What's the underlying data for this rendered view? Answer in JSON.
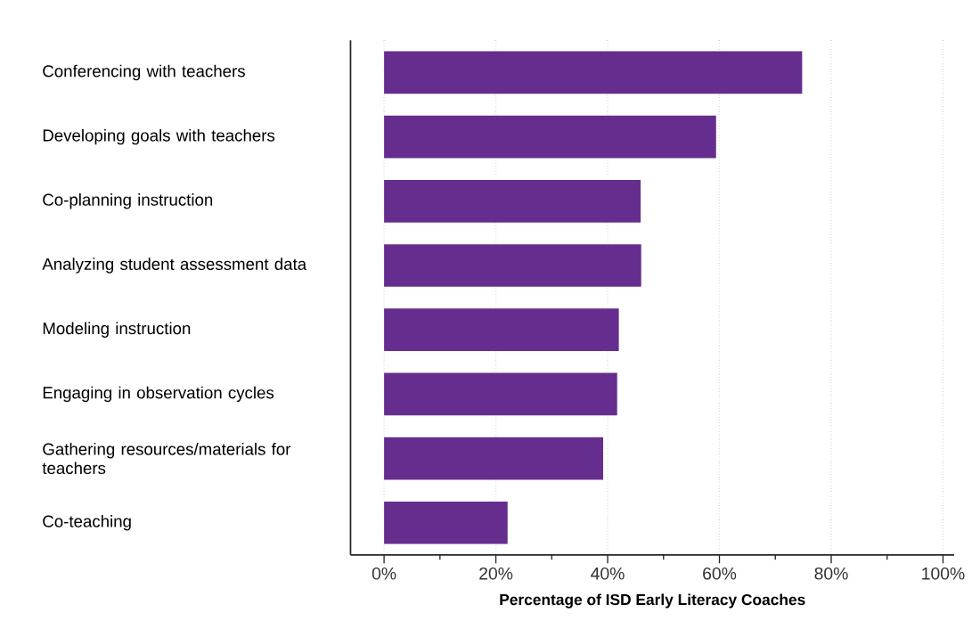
{
  "chart_data": {
    "type": "bar",
    "orientation": "horizontal",
    "xlabel": "Percentage of ISD Early Literacy Coaches",
    "categories": [
      "Conferencing with teachers",
      "Developing goals with teachers",
      "Co-planning instruction",
      "Analyzing student assessment data",
      "Modeling instruction",
      "Engaging in observation cycles",
      "Gathering resources/materials for teachers",
      "Co-teaching"
    ],
    "values": [
      74.8,
      59.4,
      45.9,
      46.0,
      42.0,
      41.7,
      39.2,
      22.1
    ],
    "color": "#652d8e",
    "xlim": [
      -6,
      102
    ],
    "xticks": [
      {
        "value": 0,
        "label": "0%"
      },
      {
        "value": 10,
        "label": null
      },
      {
        "value": 20,
        "label": "20%"
      },
      {
        "value": 30,
        "label": null
      },
      {
        "value": 40,
        "label": "40%"
      },
      {
        "value": 50,
        "label": null
      },
      {
        "value": 60,
        "label": "60%"
      },
      {
        "value": 70,
        "label": null
      },
      {
        "value": 80,
        "label": "80%"
      },
      {
        "value": 90,
        "label": null
      },
      {
        "value": 100,
        "label": "100%"
      }
    ],
    "grid": "x"
  }
}
